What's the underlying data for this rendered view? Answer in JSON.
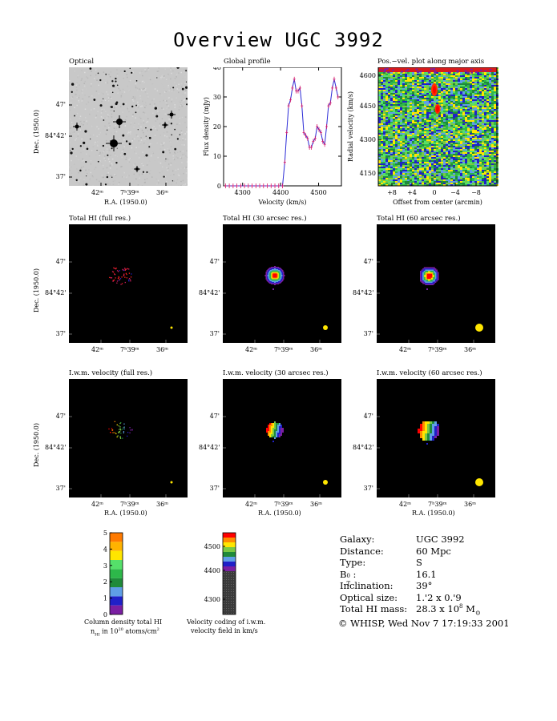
{
  "title": "Overview UGC 3992",
  "ra_ticks": [
    "42ᵐ",
    "7ʰ39ᵐ",
    "36ᵐ"
  ],
  "dec_ticks": [
    "47'",
    "84°42'",
    "37'"
  ],
  "ra_label": "R.A. (1950.0)",
  "dec_label": "Dec. (1950.0)",
  "panels": {
    "optical": "Optical",
    "global_profile": "Global profile",
    "posvel": "Pos.−vel. plot along major axis",
    "tot_full": "Total HI (full res.)",
    "tot_30": "Total HI (30 arcsec res.)",
    "tot_60": "Total HI (60 arcsec res.)",
    "iwm_full": "I.w.m. velocity (full res.)",
    "iwm_30": "I.w.m. velocity (30 arcsec res.)",
    "iwm_60": "I.w.m. velocity (60 arcsec res.)"
  },
  "chart_data": [
    {
      "type": "line",
      "title": "Global profile",
      "xlabel": "Velocity (km/s)",
      "ylabel": "Flux density (mJy)",
      "xlim": [
        4250,
        4560
      ],
      "ylim": [
        0,
        40
      ],
      "xticks": [
        4300,
        4400,
        4500
      ],
      "yticks": [
        0,
        10,
        20,
        30,
        40
      ],
      "x": [
        4255,
        4265,
        4275,
        4285,
        4295,
        4305,
        4315,
        4325,
        4335,
        4345,
        4355,
        4365,
        4375,
        4385,
        4395,
        4405,
        4411,
        4416,
        4421,
        4426,
        4431,
        4436,
        4441,
        4446,
        4451,
        4456,
        4461,
        4466,
        4471,
        4476,
        4481,
        4486,
        4491,
        4496,
        4501,
        4506,
        4511,
        4516,
        4521,
        4526,
        4531,
        4536,
        4541,
        4546,
        4551
      ],
      "y": [
        0,
        0,
        0,
        0,
        0,
        0,
        0,
        0,
        0,
        0,
        0,
        0,
        0,
        0,
        0,
        0,
        8,
        18,
        27,
        29,
        33,
        36,
        32,
        32,
        33,
        27,
        18,
        17,
        16,
        13,
        13,
        15,
        16,
        20,
        19,
        18,
        15,
        14,
        20,
        27,
        28,
        33,
        36,
        33,
        30
      ],
      "series_color": "#2b2bd6",
      "point_color": "#d81b6b"
    },
    {
      "type": "heatmap",
      "title": "Pos.−vel. plot along major axis",
      "xlabel": "Offset from center (arcmin)",
      "ylabel": "Radial velocity (km/s)",
      "xticks": [
        "+8",
        "+4",
        "0",
        "−4",
        "−8"
      ],
      "yticks": [
        4600,
        4450,
        4300,
        4150
      ]
    }
  ],
  "colorbars": {
    "column_density": {
      "ticks": [
        "0",
        "1",
        "2",
        "3",
        "4",
        "5"
      ],
      "colors": [
        "#7a1fa2",
        "#2020c8",
        "#5f9ee6",
        "#1f8a3a",
        "#2db84a",
        "#55e06a",
        "#ffe600",
        "#ffb300",
        "#ff7a00"
      ],
      "caption1": "Column density total HI",
      "caption2": "n",
      "caption2_sub": "HI",
      "caption2_rest": " in 10",
      "caption2_sup": "20",
      "caption2_end": " atoms/cm",
      "caption2_sup2": "2"
    },
    "velocity": {
      "ticks": [
        "4500",
        "4400",
        "4300"
      ],
      "colors": [
        "#ff0000",
        "#ff8c00",
        "#ffe600",
        "#7ac943",
        "#1f8a3a",
        "#5f9ee6",
        "#2020c8",
        "#7a1fa2"
      ],
      "caption1": "Velocity coding of i.w.m.",
      "caption2": "velocity field in km/s"
    }
  },
  "info": {
    "labels": [
      "Galaxy:",
      "Distance:",
      "Type:",
      "B",
      "Inclination:",
      "Optical size:",
      "Total HI mass:"
    ],
    "b_sup": "0",
    "b_sub": "T",
    "b_colon": ":",
    "values": [
      "UGC 3992",
      "60 Mpc",
      "S",
      "16.1",
      "39°",
      "1.'2 x 0.'9",
      "28.3 x 10"
    ],
    "mass_sup": "8",
    "mass_unit": " M",
    "mass_sub": "⊙",
    "footer": "© WHISP, Wed Nov  7 17:19:33 2001"
  }
}
